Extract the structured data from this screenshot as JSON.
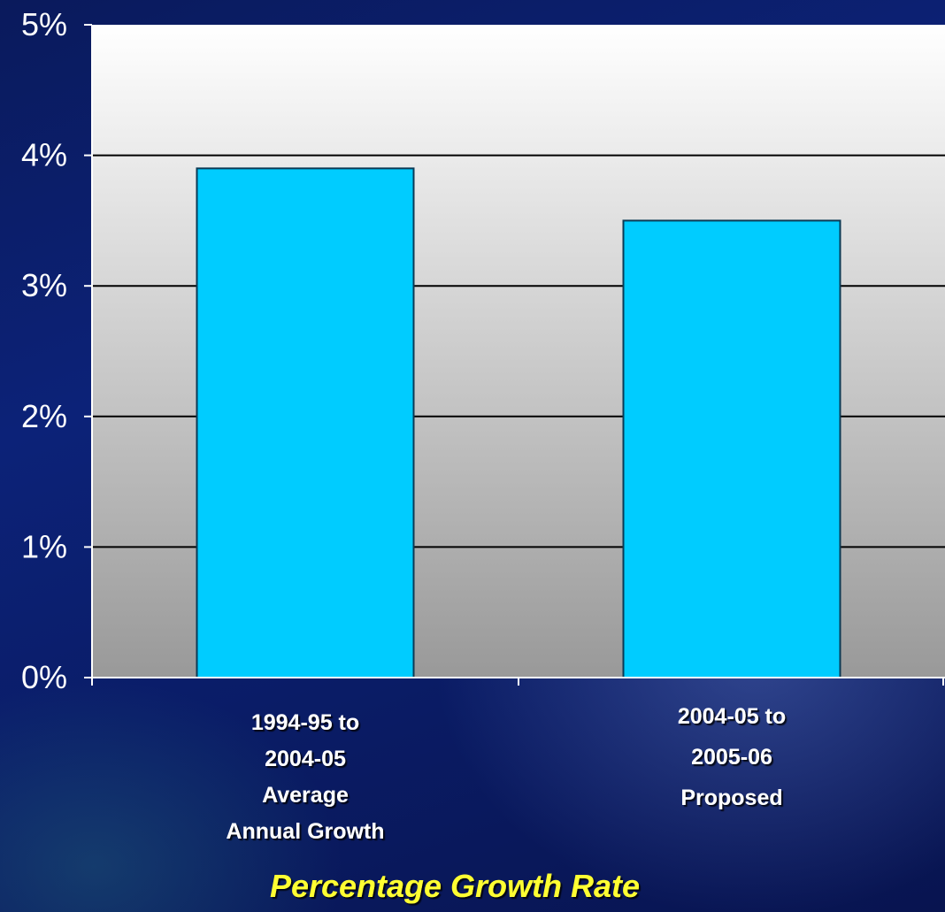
{
  "chart_data": {
    "type": "bar",
    "categories": [
      [
        "1994-95 to",
        "2004-05",
        "Average",
        "Annual Growth"
      ],
      [
        "2004-05 to",
        "2005-06",
        "Proposed"
      ]
    ],
    "values": [
      3.9,
      3.5
    ],
    "y_ticks": [
      "0%",
      "1%",
      "2%",
      "3%",
      "4%",
      "5%"
    ],
    "ylim": [
      0,
      5
    ],
    "xlabel": "Percentage Growth Rate",
    "grid": true,
    "colors": {
      "bar": "#00ccff",
      "bar_stroke": "#0a3a55",
      "plot_top": "#ffffff",
      "plot_bottom": "#999999",
      "title": "#ffff33"
    }
  }
}
